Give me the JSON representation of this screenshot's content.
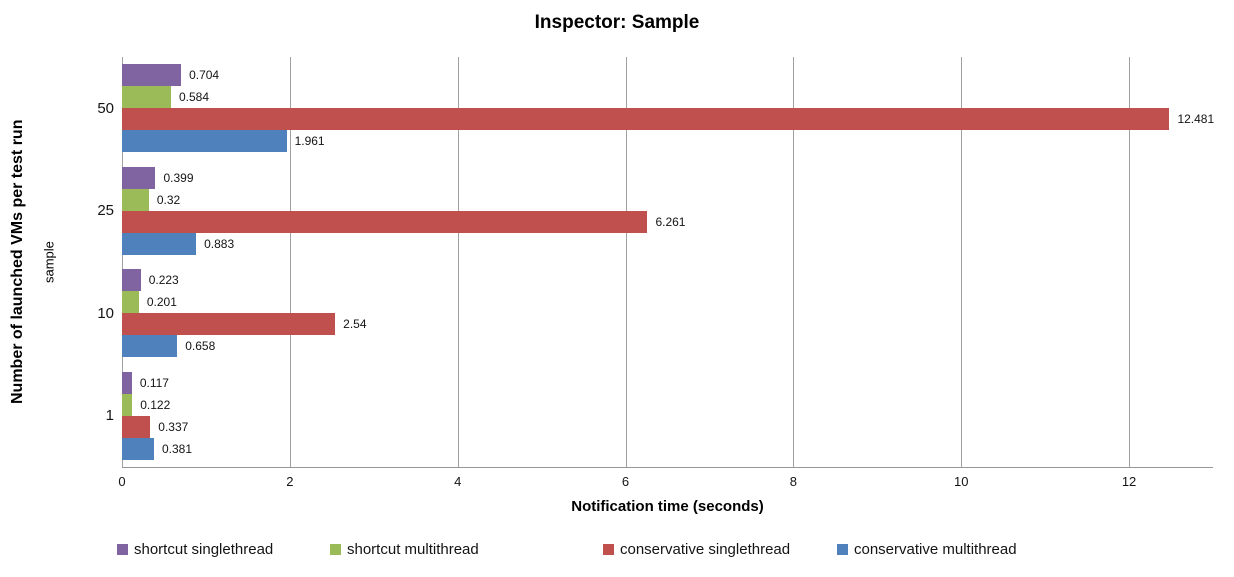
{
  "chart_data": {
    "type": "bar",
    "orientation": "horizontal",
    "title": "Inspector: Sample",
    "xlabel": "Notification time (seconds)",
    "ylabel": "Number of launched VMs per test run",
    "ylabel_secondary": "sample",
    "categories": [
      "50",
      "25",
      "10",
      "1"
    ],
    "series": [
      {
        "name": "shortcut singlethread",
        "color": "#8064A2",
        "values": [
          0.704,
          0.399,
          0.223,
          0.117
        ]
      },
      {
        "name": "shortcut multithread",
        "color": "#9BBB59",
        "values": [
          0.584,
          0.32,
          0.201,
          0.122
        ]
      },
      {
        "name": "conservative singlethread",
        "color": "#C0504D",
        "values": [
          12.481,
          6.261,
          2.54,
          0.337
        ]
      },
      {
        "name": "conservative multithread",
        "color": "#4F81BD",
        "values": [
          1.961,
          0.883,
          0.658,
          0.381
        ]
      }
    ],
    "xlim": [
      0,
      13
    ],
    "xticks": [
      0,
      2,
      4,
      6,
      8,
      10,
      12
    ],
    "grid": true,
    "legend_position": "bottom",
    "gridline_color": "#a0a0a0",
    "background_color": "#ffffff"
  }
}
